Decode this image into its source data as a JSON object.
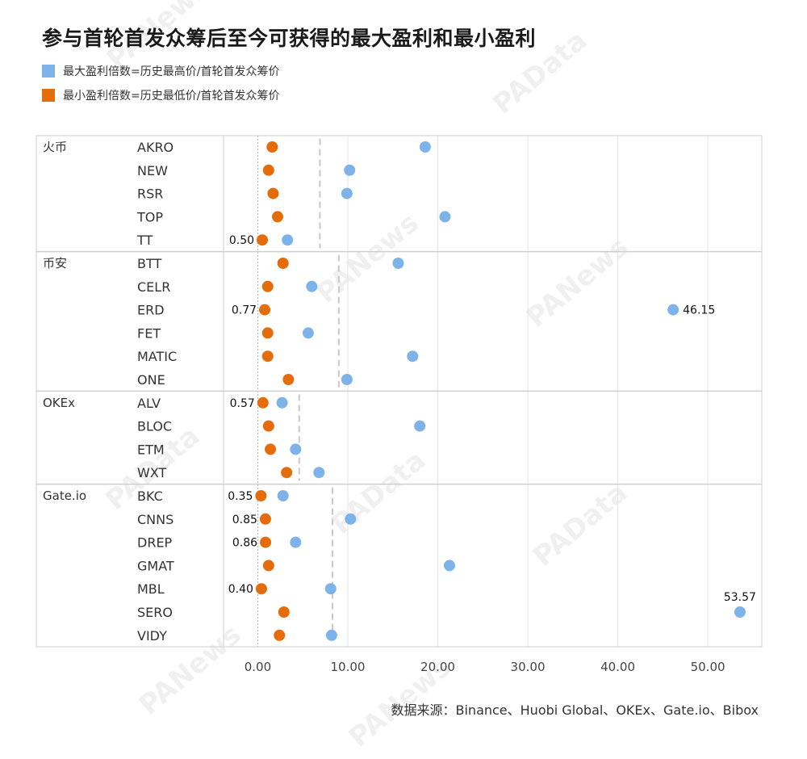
{
  "title": "参与首轮首发众筹后至今可获得的最大盈利和最小盈利",
  "legend": [
    {
      "label": "最大盈利倍数=历史最高价/首轮首发众筹价",
      "color": "#7EB3EA"
    },
    {
      "label": "最小盈利倍数=历史最低价/首轮首发众筹价",
      "color": "#E46C0A"
    }
  ],
  "source": "数据来源：Binance、Huobi Global、OKEx、Gate.io、Bibox",
  "watermark": "PANews / PAData",
  "colors": {
    "max": "#7EB3EA",
    "min": "#E46C0A",
    "grid": "#e4e4e4",
    "frame": "#cfcfcf",
    "ref": "#c8c8c8"
  },
  "chart_data": {
    "type": "dumbbell",
    "xlim": [
      -3,
      56
    ],
    "xticks": [
      0,
      10,
      20,
      30,
      40,
      50
    ],
    "xtick_labels": [
      "0.00",
      "10.00",
      "20.00",
      "30.00",
      "40.00",
      "50.00"
    ],
    "series": [
      {
        "name": "最大盈利倍数=历史最高价/首轮首发众筹价",
        "key": "max"
      },
      {
        "name": "最小盈利倍数=历史最低价/首轮首发众筹价",
        "key": "min"
      }
    ],
    "groups": [
      {
        "name": "火币",
        "ref": 6.9,
        "items": [
          {
            "name": "AKRO",
            "min": 1.6,
            "max": 18.6
          },
          {
            "name": "NEW",
            "min": 1.2,
            "max": 10.2
          },
          {
            "name": "RSR",
            "min": 1.7,
            "max": 9.9
          },
          {
            "name": "TOP",
            "min": 2.2,
            "max": 20.8
          },
          {
            "name": "TT",
            "min": 0.5,
            "max": 3.3,
            "min_label": "0.50"
          }
        ]
      },
      {
        "name": "币安",
        "ref": 9.0,
        "items": [
          {
            "name": "BTT",
            "min": 2.8,
            "max": 15.6
          },
          {
            "name": "CELR",
            "min": 1.1,
            "max": 6.0
          },
          {
            "name": "ERD",
            "min": 0.77,
            "max": 46.15,
            "min_label": "0.77",
            "max_label": "46.15"
          },
          {
            "name": "FET",
            "min": 1.1,
            "max": 5.6
          },
          {
            "name": "MATIC",
            "min": 1.1,
            "max": 17.2
          },
          {
            "name": "ONE",
            "min": 3.4,
            "max": 9.9
          }
        ]
      },
      {
        "name": "OKEx",
        "ref": 4.6,
        "items": [
          {
            "name": "ALV",
            "min": 0.57,
            "max": 2.7,
            "min_label": "0.57"
          },
          {
            "name": "BLOC",
            "min": 1.2,
            "max": 18.0
          },
          {
            "name": "ETM",
            "min": 1.4,
            "max": 4.2
          },
          {
            "name": "WXT",
            "min": 3.2,
            "max": 6.8
          }
        ]
      },
      {
        "name": "Gate.io",
        "ref": 8.3,
        "items": [
          {
            "name": "BKC",
            "min": 0.35,
            "max": 2.8,
            "min_label": "0.35"
          },
          {
            "name": "CNNS",
            "min": 0.85,
            "max": 10.3,
            "min_label": "0.85"
          },
          {
            "name": "DREP",
            "min": 0.86,
            "max": 4.2,
            "min_label": "0.86"
          },
          {
            "name": "GMAT",
            "min": 1.2,
            "max": 21.3
          },
          {
            "name": "MBL",
            "min": 0.4,
            "max": 8.1,
            "min_label": "0.40"
          },
          {
            "name": "SERO",
            "min": 2.9,
            "max": 53.57,
            "max_label": "53.57"
          },
          {
            "name": "VIDY",
            "min": 2.4,
            "max": 8.2
          }
        ]
      }
    ]
  }
}
